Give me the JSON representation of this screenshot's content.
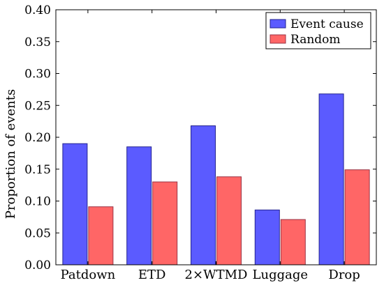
{
  "chart_data": {
    "type": "bar",
    "categories": [
      "Patdown",
      "ETD",
      "2×WTMD",
      "Luggage",
      "Drop"
    ],
    "series": [
      {
        "name": "Event cause",
        "values": [
          0.19,
          0.185,
          0.218,
          0.086,
          0.268
        ],
        "color": "#5b5bff",
        "stroke": "#23238f"
      },
      {
        "name": "Random",
        "values": [
          0.091,
          0.13,
          0.138,
          0.071,
          0.149
        ],
        "color": "#ff6666",
        "stroke": "#993344"
      }
    ],
    "ylabel": "Proportion of events",
    "xlabel": "",
    "ylim": [
      0,
      0.4
    ],
    "yticks": [
      "0.00",
      "0.05",
      "0.10",
      "0.15",
      "0.20",
      "0.25",
      "0.30",
      "0.35",
      "0.40"
    ],
    "grid": false,
    "legend_position": "top-right"
  }
}
